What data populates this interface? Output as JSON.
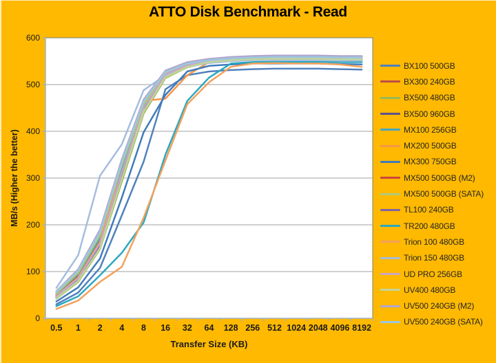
{
  "colors": {
    "background": "#FFB900",
    "plot_background": "#FFFFFF",
    "plot_border": "#7F7F7F",
    "gridline": "#A0A0A0",
    "axis_line": "#9DB2CB",
    "tick_text": "#1A1A1A",
    "title_text": "#000000",
    "legend_text": "#262626"
  },
  "chart_data": {
    "type": "line",
    "title": "ATTO Disk Benchmark - Read",
    "xlabel": "Transfer Size (KB)",
    "ylabel": "MB/s (Higher the better)",
    "ylim": [
      0,
      600
    ],
    "ytick_step": 100,
    "grid": true,
    "legend_position": "right",
    "categories": [
      "0.5",
      "1",
      "2",
      "4",
      "8",
      "16",
      "32",
      "64",
      "128",
      "256",
      "512",
      "1024",
      "2048",
      "4096",
      "8192"
    ],
    "series": [
      {
        "name": "BX100 500GB",
        "color": "#4F81BD",
        "values": [
          30,
          55,
          108,
          220,
          335,
          490,
          520,
          528,
          531,
          533,
          534,
          534,
          534,
          533,
          532
        ]
      },
      {
        "name": "BX300 240GB",
        "color": "#BE4B48",
        "values": [
          50,
          92,
          168,
          318,
          452,
          524,
          544,
          552,
          556,
          558,
          558,
          558,
          558,
          557,
          557
        ]
      },
      {
        "name": "BX500 480GB",
        "color": "#98B954",
        "values": [
          42,
          78,
          148,
          292,
          438,
          514,
          537,
          547,
          551,
          553,
          554,
          554,
          554,
          553,
          553
        ]
      },
      {
        "name": "BX500 960GB",
        "color": "#5A518F",
        "values": [
          46,
          85,
          156,
          306,
          446,
          519,
          539,
          549,
          553,
          555,
          556,
          556,
          556,
          555,
          555
        ]
      },
      {
        "name": "MX100 256GB",
        "color": "#45A5C3",
        "values": [
          52,
          95,
          172,
          322,
          455,
          524,
          542,
          550,
          554,
          556,
          557,
          557,
          557,
          556,
          556
        ]
      },
      {
        "name": "MX200 500GB",
        "color": "#F79646",
        "values": [
          48,
          88,
          164,
          330,
          465,
          470,
          520,
          548,
          553,
          556,
          557,
          557,
          558,
          557,
          556
        ]
      },
      {
        "name": "MX300 750GB",
        "color": "#3F7BBB",
        "values": [
          36,
          66,
          128,
          258,
          398,
          478,
          528,
          540,
          543,
          545,
          545,
          545,
          545,
          544,
          543
        ]
      },
      {
        "name": "MX500 500GB (M2)",
        "color": "#C9443C",
        "values": [
          55,
          100,
          182,
          332,
          460,
          527,
          546,
          554,
          558,
          560,
          561,
          561,
          561,
          560,
          560
        ]
      },
      {
        "name": "MX500 500GB (SATA)",
        "color": "#AFC97A",
        "values": [
          53,
          97,
          178,
          328,
          458,
          525,
          544,
          552,
          556,
          558,
          559,
          559,
          559,
          558,
          558
        ]
      },
      {
        "name": "TL100 240GB",
        "color": "#7E62A8",
        "values": [
          44,
          82,
          152,
          302,
          448,
          521,
          540,
          548,
          552,
          554,
          555,
          555,
          555,
          554,
          554
        ]
      },
      {
        "name": "TR200 480GB",
        "color": "#2BA8C0",
        "values": [
          26,
          47,
          92,
          140,
          205,
          350,
          465,
          515,
          545,
          548,
          549,
          549,
          549,
          548,
          548
        ]
      },
      {
        "name": "Trion 100 480GB",
        "color": "#F2A25C",
        "values": [
          20,
          38,
          78,
          110,
          215,
          338,
          458,
          505,
          538,
          545,
          546,
          545,
          545,
          543,
          538
        ]
      },
      {
        "name": "Trion 150 480GB",
        "color": "#A5BDDD",
        "values": [
          65,
          135,
          305,
          372,
          488,
          520,
          538,
          546,
          550,
          552,
          552,
          552,
          552,
          551,
          551
        ]
      },
      {
        "name": "UD PRO 256GB",
        "color": "#C9A5C6",
        "values": [
          47,
          86,
          160,
          312,
          450,
          522,
          541,
          550,
          554,
          556,
          557,
          557,
          557,
          556,
          556
        ]
      },
      {
        "name": "UV400 480GB",
        "color": "#C2D59A",
        "values": [
          43,
          80,
          150,
          298,
          442,
          516,
          538,
          548,
          552,
          554,
          555,
          555,
          555,
          554,
          554
        ]
      },
      {
        "name": "UV500 240GB (M2)",
        "color": "#B2A6CE",
        "values": [
          58,
          105,
          190,
          340,
          468,
          530,
          548,
          555,
          559,
          561,
          562,
          562,
          562,
          561,
          561
        ]
      },
      {
        "name": "UV500 240GB (SATA)",
        "color": "#9CC8E0",
        "values": [
          56,
          102,
          184,
          334,
          464,
          527,
          545,
          552,
          556,
          558,
          559,
          559,
          559,
          558,
          558
        ]
      }
    ]
  }
}
